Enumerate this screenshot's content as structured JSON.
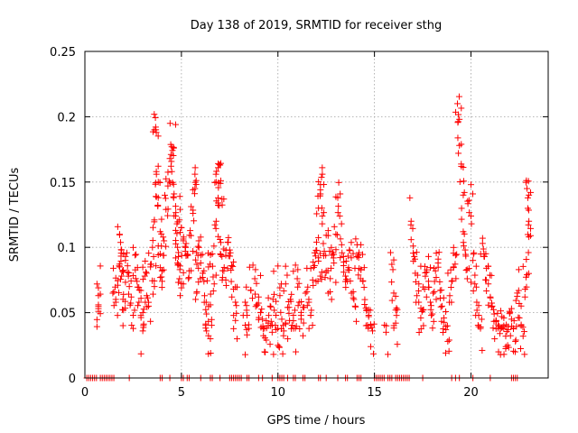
{
  "chart_data": {
    "type": "scatter",
    "title": "Day 138 of 2019, SRMTID for receiver sthg",
    "xlabel": "GPS time / hours",
    "ylabel": "SRMTID / TECUs",
    "xlim": [
      0,
      24
    ],
    "ylim": [
      0,
      0.25
    ],
    "xticks": [
      0,
      5,
      10,
      15,
      20
    ],
    "yticks": [
      0,
      0.05,
      0.1,
      0.15,
      0.2,
      0.25
    ],
    "xtick_labels": [
      "0",
      "5",
      "10",
      "15",
      "20"
    ],
    "ytick_labels": [
      "0",
      "0.05",
      "0.1",
      "0.15",
      "0.2",
      "0.25"
    ],
    "grid": true,
    "marker": "+",
    "color": "#ff0000",
    "series": [
      {
        "name": "SRMTID",
        "points": [
          [
            0.7,
            0.069
          ],
          [
            0.7,
            0.056
          ],
          [
            0.7,
            0.051
          ],
          [
            1.5,
            0.066
          ],
          [
            1.6,
            0.058
          ],
          [
            1.7,
            0.071
          ],
          [
            1.8,
            0.085
          ],
          [
            1.8,
            0.11
          ],
          [
            1.9,
            0.098
          ],
          [
            1.9,
            0.078
          ],
          [
            2.0,
            0.064
          ],
          [
            2.0,
            0.052
          ],
          [
            2.1,
            0.09
          ],
          [
            2.2,
            0.081
          ],
          [
            2.3,
            0.07
          ],
          [
            2.4,
            0.062
          ],
          [
            2.5,
            0.048
          ],
          [
            2.6,
            0.094
          ],
          [
            2.7,
            0.074
          ],
          [
            2.8,
            0.058
          ],
          [
            2.9,
            0.067
          ],
          [
            3.0,
            0.05
          ],
          [
            3.0,
            0.036
          ],
          [
            3.1,
            0.078
          ],
          [
            3.2,
            0.063
          ],
          [
            3.3,
            0.055
          ],
          [
            3.4,
            0.085
          ],
          [
            3.5,
            0.1
          ],
          [
            3.6,
            0.121
          ],
          [
            3.6,
            0.07
          ],
          [
            3.6,
            0.19
          ],
          [
            3.7,
            0.188
          ],
          [
            3.7,
            0.158
          ],
          [
            3.8,
            0.15
          ],
          [
            3.8,
            0.138
          ],
          [
            3.9,
            0.112
          ],
          [
            3.9,
            0.095
          ],
          [
            4.0,
            0.082
          ],
          [
            4.0,
            0.074
          ],
          [
            4.1,
            0.105
          ],
          [
            4.2,
            0.129
          ],
          [
            4.3,
            0.147
          ],
          [
            4.4,
            0.168
          ],
          [
            4.5,
            0.177
          ],
          [
            4.5,
            0.158
          ],
          [
            4.6,
            0.176
          ],
          [
            4.6,
            0.138
          ],
          [
            4.7,
            0.124
          ],
          [
            4.7,
            0.113
          ],
          [
            4.8,
            0.1
          ],
          [
            4.8,
            0.088
          ],
          [
            4.9,
            0.121
          ],
          [
            4.9,
            0.076
          ],
          [
            5.0,
            0.115
          ],
          [
            5.0,
            0.069
          ],
          [
            5.1,
            0.105
          ],
          [
            5.2,
            0.097
          ],
          [
            5.3,
            0.094
          ],
          [
            5.4,
            0.082
          ],
          [
            5.5,
            0.109
          ],
          [
            5.6,
            0.126
          ],
          [
            5.7,
            0.156
          ],
          [
            5.7,
            0.145
          ],
          [
            5.8,
            0.087
          ],
          [
            5.8,
            0.066
          ],
          [
            5.9,
            0.105
          ],
          [
            6.0,
            0.094
          ],
          [
            6.1,
            0.077
          ],
          [
            6.2,
            0.063
          ],
          [
            6.3,
            0.049
          ],
          [
            6.3,
            0.036
          ],
          [
            6.4,
            0.085
          ],
          [
            6.5,
            0.056
          ],
          [
            6.5,
            0.03
          ],
          [
            6.6,
            0.095
          ],
          [
            6.7,
            0.072
          ],
          [
            6.8,
            0.15
          ],
          [
            6.8,
            0.12
          ],
          [
            6.9,
            0.161
          ],
          [
            6.9,
            0.134
          ],
          [
            7.0,
            0.163
          ],
          [
            7.0,
            0.106
          ],
          [
            7.1,
            0.137
          ],
          [
            7.1,
            0.093
          ],
          [
            7.2,
            0.082
          ],
          [
            7.3,
            0.075
          ],
          [
            7.4,
            0.104
          ],
          [
            7.5,
            0.098
          ],
          [
            7.6,
            0.086
          ],
          [
            7.7,
            0.068
          ],
          [
            7.8,
            0.058
          ],
          [
            7.8,
            0.044
          ],
          [
            8.3,
            0.058
          ],
          [
            8.4,
            0.048
          ],
          [
            8.4,
            0.033
          ],
          [
            8.6,
            0.067
          ],
          [
            8.8,
            0.076
          ],
          [
            8.9,
            0.056
          ],
          [
            9.0,
            0.062
          ],
          [
            9.1,
            0.05
          ],
          [
            9.2,
            0.045
          ],
          [
            9.3,
            0.038
          ],
          [
            9.4,
            0.029
          ],
          [
            9.5,
            0.042
          ],
          [
            9.6,
            0.055
          ],
          [
            9.7,
            0.035
          ],
          [
            9.8,
            0.064
          ],
          [
            9.9,
            0.048
          ],
          [
            10.0,
            0.025
          ],
          [
            10.1,
            0.069
          ],
          [
            10.2,
            0.045
          ],
          [
            10.3,
            0.036
          ],
          [
            10.4,
            0.072
          ],
          [
            10.5,
            0.054
          ],
          [
            10.6,
            0.044
          ],
          [
            10.7,
            0.064
          ],
          [
            10.8,
            0.048
          ],
          [
            10.9,
            0.038
          ],
          [
            11.0,
            0.076
          ],
          [
            11.1,
            0.058
          ],
          [
            11.2,
            0.045
          ],
          [
            11.3,
            0.054
          ],
          [
            11.5,
            0.066
          ],
          [
            11.6,
            0.058
          ],
          [
            11.7,
            0.048
          ],
          [
            11.8,
            0.075
          ],
          [
            11.9,
            0.086
          ],
          [
            12.0,
            0.104
          ],
          [
            12.1,
            0.092
          ],
          [
            12.1,
            0.13
          ],
          [
            12.2,
            0.148
          ],
          [
            12.2,
            0.078
          ],
          [
            12.3,
            0.156
          ],
          [
            12.3,
            0.124
          ],
          [
            12.4,
            0.097
          ],
          [
            12.5,
            0.082
          ],
          [
            12.6,
            0.109
          ],
          [
            12.7,
            0.066
          ],
          [
            12.8,
            0.094
          ],
          [
            12.9,
            0.088
          ],
          [
            13.0,
            0.11
          ],
          [
            13.1,
            0.138
          ],
          [
            13.2,
            0.124
          ],
          [
            13.3,
            0.102
          ],
          [
            13.4,
            0.086
          ],
          [
            13.5,
            0.078
          ],
          [
            13.6,
            0.074
          ],
          [
            13.7,
            0.098
          ],
          [
            13.8,
            0.092
          ],
          [
            13.9,
            0.066
          ],
          [
            14.0,
            0.055
          ],
          [
            14.1,
            0.102
          ],
          [
            14.2,
            0.096
          ],
          [
            14.3,
            0.083
          ],
          [
            14.4,
            0.074
          ],
          [
            14.5,
            0.06
          ],
          [
            14.6,
            0.052
          ],
          [
            14.7,
            0.048
          ],
          [
            14.8,
            0.041
          ],
          [
            14.9,
            0.036
          ],
          [
            15.6,
            0.035
          ],
          [
            15.9,
            0.087
          ],
          [
            16.0,
            0.065
          ],
          [
            16.1,
            0.052
          ],
          [
            16.1,
            0.042
          ],
          [
            16.9,
            0.12
          ],
          [
            17.0,
            0.101
          ],
          [
            17.1,
            0.091
          ],
          [
            17.2,
            0.063
          ],
          [
            17.3,
            0.072
          ],
          [
            17.4,
            0.046
          ],
          [
            17.5,
            0.052
          ],
          [
            17.6,
            0.068
          ],
          [
            17.7,
            0.081
          ],
          [
            17.8,
            0.074
          ],
          [
            17.9,
            0.058
          ],
          [
            18.0,
            0.049
          ],
          [
            18.1,
            0.066
          ],
          [
            18.2,
            0.077
          ],
          [
            18.3,
            0.091
          ],
          [
            18.4,
            0.067
          ],
          [
            18.5,
            0.055
          ],
          [
            18.6,
            0.046
          ],
          [
            18.7,
            0.037
          ],
          [
            18.8,
            0.028
          ],
          [
            18.9,
            0.063
          ],
          [
            19.0,
            0.074
          ],
          [
            19.1,
            0.085
          ],
          [
            19.2,
            0.094
          ],
          [
            19.3,
            0.21
          ],
          [
            19.4,
            0.198
          ],
          [
            19.4,
            0.178
          ],
          [
            19.5,
            0.162
          ],
          [
            19.6,
            0.14
          ],
          [
            19.6,
            0.112
          ],
          [
            19.7,
            0.098
          ],
          [
            19.8,
            0.083
          ],
          [
            19.9,
            0.136
          ],
          [
            20.0,
            0.124
          ],
          [
            20.1,
            0.09
          ],
          [
            20.2,
            0.072
          ],
          [
            20.3,
            0.058
          ],
          [
            20.4,
            0.048
          ],
          [
            20.5,
            0.039
          ],
          [
            20.6,
            0.103
          ],
          [
            20.7,
            0.093
          ],
          [
            20.8,
            0.084
          ],
          [
            20.9,
            0.072
          ],
          [
            21.0,
            0.062
          ],
          [
            21.1,
            0.055
          ],
          [
            21.2,
            0.049
          ],
          [
            21.3,
            0.044
          ],
          [
            21.4,
            0.038
          ],
          [
            21.5,
            0.034
          ],
          [
            21.6,
            0.047
          ],
          [
            21.7,
            0.04
          ],
          [
            21.8,
            0.032
          ],
          [
            21.9,
            0.025
          ],
          [
            22.0,
            0.051
          ],
          [
            22.1,
            0.045
          ],
          [
            22.2,
            0.038
          ],
          [
            22.3,
            0.028
          ],
          [
            22.4,
            0.065
          ],
          [
            22.5,
            0.057
          ],
          [
            22.6,
            0.04
          ],
          [
            22.7,
            0.032
          ],
          [
            22.8,
            0.068
          ],
          [
            22.9,
            0.079
          ],
          [
            22.9,
            0.145
          ],
          [
            23.0,
            0.14
          ],
          [
            23.0,
            0.12
          ],
          [
            23.0,
            0.108
          ]
        ],
        "zero_points": [
          0.1,
          0.2,
          0.3,
          0.4,
          0.5,
          0.6,
          0.8,
          0.9,
          1.0,
          1.1,
          1.2,
          1.3,
          1.4,
          1.5,
          2.3,
          3.9,
          4.0,
          4.4,
          5.0,
          5.1,
          5.3,
          5.4,
          6.0,
          6.5,
          6.6,
          7.0,
          7.5,
          7.6,
          7.7,
          7.8,
          7.9,
          8.0,
          8.1,
          8.4,
          8.5,
          9.0,
          9.2,
          9.7,
          10.0,
          10.1,
          10.2,
          10.3,
          10.5,
          10.8,
          10.9,
          11.3,
          11.4,
          12.1,
          12.2,
          12.5,
          13.1,
          13.5,
          13.6,
          14.1,
          14.2,
          14.3,
          15.0,
          15.1,
          15.2,
          15.3,
          15.4,
          15.5,
          15.7,
          15.8,
          15.9,
          16.1,
          16.2,
          16.3,
          16.4,
          16.5,
          16.6,
          16.7,
          16.8,
          17.5,
          19.0,
          19.2,
          19.4,
          20.1,
          21.0,
          22.1,
          22.2,
          22.3,
          22.4
        ]
      }
    ]
  }
}
